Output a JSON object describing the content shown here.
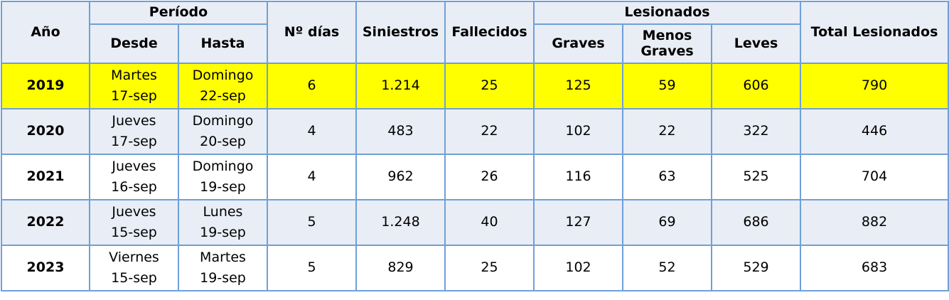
{
  "header": {
    "anio": "Año",
    "periodo": "Período",
    "desde": "Desde",
    "hasta": "Hasta",
    "dias": "Nº días",
    "siniestros": "Siniestros",
    "fallecidos": "Fallecidos",
    "lesionados": "Lesionados",
    "graves": "Graves",
    "menos_graves": "Menos Graves",
    "leves": "Leves",
    "total": "Total Lesionados"
  },
  "rows": [
    [
      "2019",
      "Martes",
      "17-sep",
      "Domingo",
      "22-sep",
      "6",
      "1.214",
      "25",
      "125",
      "59",
      "606",
      "790"
    ],
    [
      "2020",
      "Jueves",
      "17-sep",
      "Domingo",
      "20-sep",
      "4",
      "483",
      "22",
      "102",
      "22",
      "322",
      "446"
    ],
    [
      "2021",
      "Jueves",
      "16-sep",
      "Domingo",
      "19-sep",
      "4",
      "962",
      "26",
      "116",
      "63",
      "525",
      "704"
    ],
    [
      "2022",
      "Jueves",
      "15-sep",
      "Lunes",
      "19-sep",
      "5",
      "1.248",
      "40",
      "127",
      "69",
      "686",
      "882"
    ],
    [
      "2023",
      "Viernes",
      "15-sep",
      "Martes",
      "19-sep",
      "5",
      "829",
      "25",
      "102",
      "52",
      "529",
      "683"
    ]
  ]
}
